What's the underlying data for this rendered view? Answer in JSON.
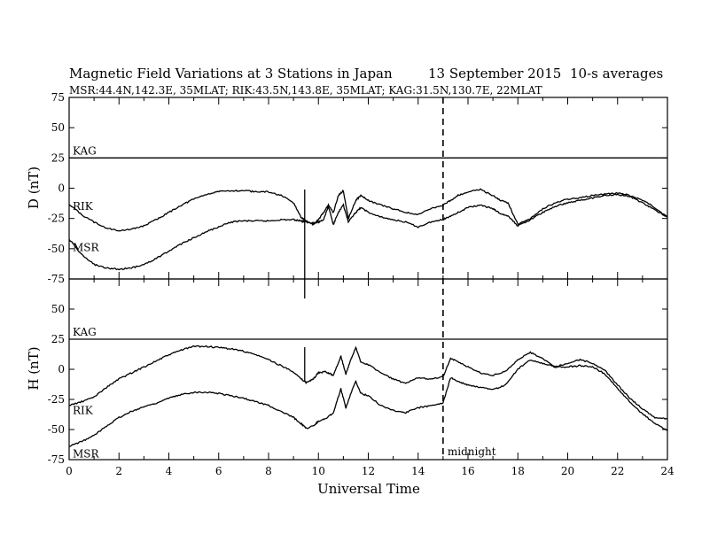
{
  "header": {
    "title": "Magnetic Field Variations at 3 Stations in Japan",
    "date": "13 September 2015",
    "averaging": "10-s averages",
    "stations": "MSR:44.4N,142.3E, 35MLAT;  RIK:43.5N,143.8E, 35MLAT;  KAG:31.5N,130.7E, 22MLAT"
  },
  "chart_data": [
    {
      "type": "line",
      "panel": "top",
      "ylabel": "D (nT)",
      "xlim": [
        0,
        24
      ],
      "ylim": [
        -75,
        75
      ],
      "yticks": [
        -75,
        -50,
        -25,
        0,
        25,
        50,
        75
      ],
      "series": [
        {
          "name": "KAG",
          "x": [
            0,
            24
          ],
          "y": [
            25,
            25
          ]
        },
        {
          "name": "RIK",
          "x": [
            0,
            0.5,
            1,
            1.5,
            2,
            2.5,
            3,
            3.5,
            4,
            4.5,
            5,
            5.5,
            6,
            6.5,
            7,
            7.5,
            8,
            8.5,
            9,
            9.3,
            9.5,
            9.8,
            10,
            10.2,
            10.4,
            10.6,
            10.8,
            11,
            11.2,
            11.5,
            11.7,
            12,
            12.5,
            13,
            13.5,
            14,
            14.5,
            15,
            15.3,
            15.6,
            16,
            16.5,
            17,
            17.3,
            17.6,
            18,
            18.5,
            19,
            19.5,
            20,
            20.5,
            21,
            21.5,
            22,
            22.5,
            23,
            23.5,
            24
          ],
          "y": [
            -13,
            -22,
            -28,
            -33,
            -35,
            -34,
            -31,
            -26,
            -20,
            -14,
            -9,
            -5,
            -3,
            -2,
            -2,
            -3,
            -3,
            -6,
            -12,
            -24,
            -27,
            -30,
            -26,
            -20,
            -14,
            -20,
            -6,
            -2,
            -25,
            -10,
            -6,
            -10,
            -14,
            -17,
            -20,
            -22,
            -17,
            -14,
            -10,
            -6,
            -3,
            -1,
            -6,
            -10,
            -12,
            -30,
            -25,
            -17,
            -12,
            -9,
            -8,
            -6,
            -5,
            -4,
            -6,
            -10,
            -16,
            -24
          ]
        },
        {
          "name": "MSR",
          "x": [
            0,
            0.5,
            1,
            1.5,
            2,
            2.5,
            3,
            3.5,
            4,
            4.5,
            5,
            5.5,
            6,
            6.5,
            7,
            7.5,
            8,
            8.5,
            9,
            9.3,
            9.5,
            9.8,
            10,
            10.2,
            10.4,
            10.6,
            10.8,
            11,
            11.2,
            11.5,
            11.7,
            12,
            12.5,
            13,
            13.5,
            14,
            14.5,
            15,
            15.3,
            15.6,
            16,
            16.5,
            17,
            17.3,
            17.6,
            18,
            18.5,
            19,
            19.5,
            20,
            20.5,
            21,
            21.5,
            22,
            22.5,
            23,
            23.5,
            24
          ],
          "y": [
            -42,
            -55,
            -63,
            -66,
            -67,
            -66,
            -63,
            -58,
            -52,
            -46,
            -41,
            -36,
            -32,
            -28,
            -27,
            -27,
            -27,
            -26,
            -26,
            -27,
            -28,
            -29,
            -28,
            -26,
            -15,
            -30,
            -20,
            -14,
            -28,
            -20,
            -16,
            -20,
            -24,
            -26,
            -28,
            -32,
            -28,
            -26,
            -23,
            -20,
            -16,
            -14,
            -17,
            -21,
            -23,
            -31,
            -26,
            -20,
            -15,
            -12,
            -10,
            -8,
            -6,
            -5,
            -7,
            -12,
            -18,
            -24
          ]
        }
      ]
    },
    {
      "type": "line",
      "panel": "bottom",
      "ylabel": "H (nT)",
      "xlabel": "Universal Time",
      "xlim": [
        0,
        24
      ],
      "ylim": [
        -75,
        75
      ],
      "yticks": [
        -75,
        -50,
        -25,
        0,
        25,
        50
      ],
      "xticks": [
        0,
        2,
        4,
        6,
        8,
        10,
        12,
        14,
        16,
        18,
        20,
        22,
        24
      ],
      "series": [
        {
          "name": "KAG",
          "x": [
            0,
            24
          ],
          "y": [
            25,
            25
          ]
        },
        {
          "name": "RIK",
          "x": [
            0,
            0.5,
            1,
            1.5,
            2,
            2.5,
            3,
            3.5,
            4,
            4.5,
            5,
            5.5,
            6,
            6.5,
            7,
            7.5,
            8,
            8.5,
            9,
            9.3,
            9.5,
            9.8,
            10,
            10.3,
            10.6,
            10.9,
            11.1,
            11.3,
            11.5,
            11.7,
            12,
            12.5,
            13,
            13.5,
            14,
            14.5,
            15,
            15.3,
            15.6,
            16,
            16.5,
            17,
            17.5,
            18,
            18.5,
            19,
            19.5,
            20,
            20.5,
            21,
            21.5,
            22,
            22.5,
            23,
            23.5,
            24
          ],
          "y": [
            -30,
            -27,
            -23,
            -15,
            -8,
            -3,
            2,
            7,
            12,
            16,
            19,
            19,
            18,
            17,
            15,
            12,
            8,
            3,
            -2,
            -8,
            -11,
            -8,
            -3,
            -2,
            -5,
            11,
            -4,
            8,
            18,
            6,
            4,
            -3,
            -8,
            -12,
            -7,
            -8,
            -6,
            9,
            6,
            2,
            -3,
            -5,
            -2,
            8,
            14,
            9,
            2,
            5,
            8,
            5,
            -1,
            -13,
            -24,
            -33,
            -40,
            -41
          ]
        },
        {
          "name": "MSR",
          "x": [
            0,
            0.5,
            1,
            1.5,
            2,
            2.5,
            3,
            3.5,
            4,
            4.5,
            5,
            5.5,
            6,
            6.5,
            7,
            7.5,
            8,
            8.5,
            9,
            9.3,
            9.5,
            9.8,
            10,
            10.3,
            10.6,
            10.9,
            11.1,
            11.3,
            11.5,
            11.7,
            12,
            12.5,
            13,
            13.5,
            14,
            14.5,
            15,
            15.3,
            15.6,
            16,
            16.5,
            17,
            17.5,
            18,
            18.5,
            19,
            19.5,
            20,
            20.5,
            21,
            21.5,
            22,
            22.5,
            23,
            23.5,
            24
          ],
          "y": [
            -64,
            -60,
            -55,
            -47,
            -40,
            -35,
            -31,
            -28,
            -24,
            -21,
            -19,
            -19,
            -20,
            -22,
            -24,
            -27,
            -30,
            -35,
            -40,
            -45,
            -49,
            -47,
            -43,
            -41,
            -36,
            -16,
            -32,
            -20,
            -10,
            -20,
            -22,
            -30,
            -34,
            -36,
            -32,
            -30,
            -28,
            -7,
            -10,
            -13,
            -15,
            -17,
            -13,
            0,
            8,
            5,
            2,
            2,
            3,
            2,
            -4,
            -16,
            -27,
            -37,
            -45,
            -51
          ]
        }
      ],
      "annotation": {
        "x": 15,
        "text": "midnight"
      }
    }
  ]
}
